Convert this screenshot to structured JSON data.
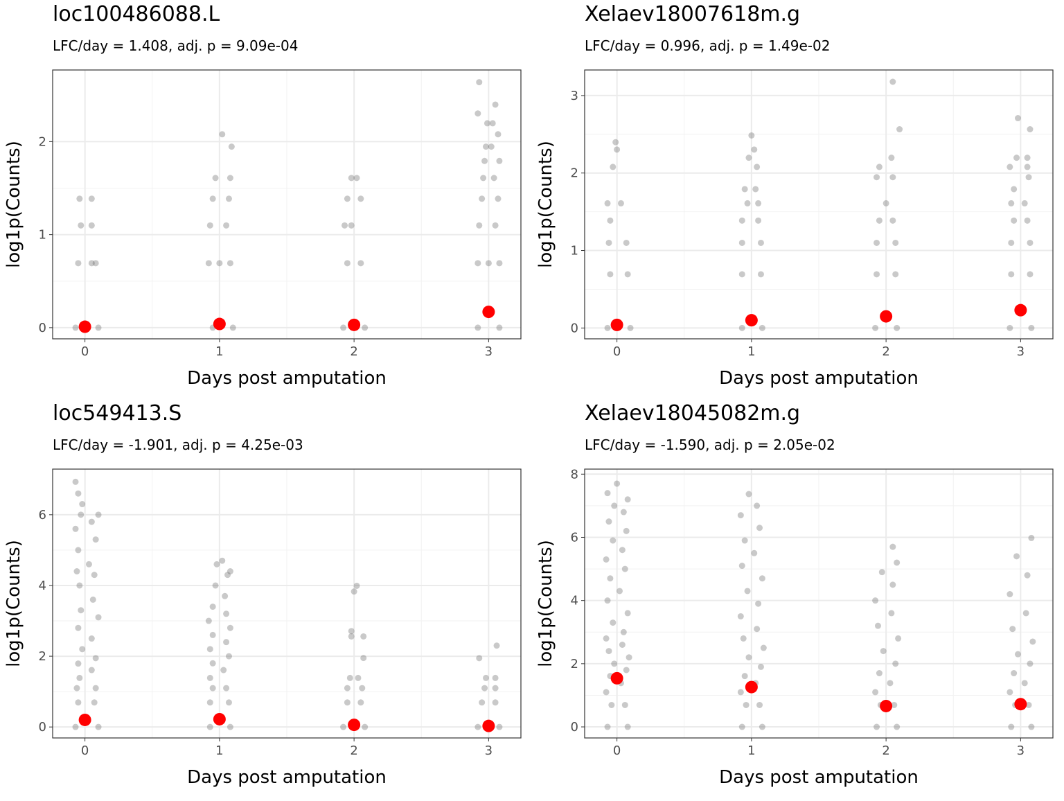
{
  "chart_data": [
    {
      "type": "scatter",
      "title": "loc100486088.L",
      "subtitle": "LFC/day = 1.408, adj. p = 9.09e-04",
      "x_label": "Days post amputation",
      "y_label": "log1p(Counts)",
      "xlim": [
        -0.24,
        3.24
      ],
      "ylim": [
        -0.12,
        2.77
      ],
      "xticks": [
        0,
        1,
        2,
        3
      ],
      "yticks": [
        0,
        1,
        2
      ],
      "grid": true,
      "series": [
        {
          "color": "#636363",
          "opacity": 0.35,
          "x": [
            -0.07,
            0.1,
            0,
            -0.05,
            0.05,
            0.08,
            -0.03,
            0.05,
            -0.04,
            0.05,
            0.95,
            1.1,
            0.92,
            1.0,
            1.08,
            0.93,
            1.05,
            0.95,
            1.07,
            0.97,
            1.08,
            1.02,
            1.09,
            1.92,
            2.08,
            1.95,
            2.05,
            1.93,
            1.98,
            1.95,
            2.05,
            1.98,
            2.02,
            2.92,
            3.08,
            2.92,
            3.0,
            3.08,
            2.93,
            3.05,
            2.95,
            3.07,
            2.96,
            3.04,
            2.97,
            3.08,
            2.98,
            3.02,
            2.99,
            3.03,
            3.05,
            2.92,
            2.93,
            3.07
          ],
          "values": [
            0,
            0,
            0,
            0.693,
            0.693,
            0.693,
            1.099,
            1.099,
            1.386,
            1.386,
            0,
            0,
            0.693,
            0.693,
            0.693,
            1.099,
            1.099,
            1.386,
            1.386,
            1.609,
            1.609,
            2.079,
            1.946,
            0,
            0,
            0.693,
            0.693,
            1.099,
            1.099,
            1.386,
            1.386,
            1.609,
            1.609,
            0,
            0,
            0.693,
            0.693,
            0.693,
            1.099,
            1.099,
            1.386,
            1.386,
            1.609,
            1.609,
            1.792,
            1.792,
            1.946,
            1.946,
            2.197,
            2.197,
            2.398,
            2.303,
            2.639,
            2.079
          ]
        },
        {
          "color": "#ff0000",
          "opacity": 1,
          "x": [
            0,
            1,
            2,
            3
          ],
          "values": [
            0.01,
            0.04,
            0.03,
            0.17
          ]
        }
      ]
    },
    {
      "type": "scatter",
      "title": "Xelaev18007618m.g",
      "subtitle": "LFC/day = 0.996, adj. p = 1.49e-02",
      "x_label": "Days post amputation",
      "y_label": "log1p(Counts)",
      "xlim": [
        -0.24,
        3.24
      ],
      "ylim": [
        -0.14,
        3.33
      ],
      "xticks": [
        0,
        1,
        2,
        3
      ],
      "yticks": [
        0,
        1,
        2,
        3
      ],
      "grid": true,
      "series": [
        {
          "color": "#636363",
          "opacity": 0.35,
          "x": [
            -0.07,
            0.1,
            -0.05,
            0.08,
            -0.06,
            0.07,
            -0.05,
            -0.07,
            0.03,
            -0.03,
            0.0,
            -0.01,
            0.93,
            1.08,
            0.93,
            1.07,
            0.93,
            1.07,
            0.93,
            1.05,
            0.97,
            1.05,
            0.95,
            1.03,
            1.04,
            0.98,
            1.02,
            1.0,
            1.92,
            2.08,
            1.93,
            2.07,
            1.93,
            2.07,
            1.95,
            2.05,
            2.0,
            1.93,
            2.05,
            1.95,
            2.04,
            2.1,
            2.05,
            2.92,
            3.08,
            2.93,
            3.07,
            2.93,
            3.07,
            2.95,
            3.05,
            2.93,
            3.03,
            2.95,
            3.06,
            2.92,
            3.05,
            2.97,
            3.05,
            3.07,
            2.98
          ],
          "values": [
            0,
            0,
            0.693,
            0.693,
            1.099,
            1.099,
            1.386,
            1.609,
            1.609,
            2.079,
            2.303,
            2.398,
            0,
            0,
            0.693,
            0.693,
            1.099,
            1.099,
            1.386,
            1.386,
            1.609,
            1.609,
            1.792,
            1.792,
            2.079,
            2.197,
            2.303,
            2.485,
            0,
            0,
            0.693,
            0.693,
            1.099,
            1.099,
            1.386,
            1.386,
            1.609,
            1.946,
            1.946,
            2.079,
            2.197,
            2.565,
            3.178,
            0,
            0,
            0.693,
            0.693,
            1.099,
            1.099,
            1.386,
            1.386,
            1.609,
            1.609,
            1.792,
            1.946,
            2.079,
            2.079,
            2.197,
            2.197,
            2.565,
            2.708
          ]
        },
        {
          "color": "#ff0000",
          "opacity": 1,
          "x": [
            0,
            1,
            2,
            3
          ],
          "values": [
            0.04,
            0.1,
            0.15,
            0.23
          ]
        }
      ]
    },
    {
      "type": "scatter",
      "title": "loc549413.S",
      "subtitle": "LFC/day = -1.901, adj. p = 4.25e-03",
      "x_label": "Days post amputation",
      "y_label": "log1p(Counts)",
      "xlim": [
        -0.24,
        3.24
      ],
      "ylim": [
        -0.31,
        7.29
      ],
      "xticks": [
        0,
        1,
        2,
        3
      ],
      "yticks": [
        0,
        2,
        4,
        6
      ],
      "grid": true,
      "series": [
        {
          "color": "#636363",
          "opacity": 0.35,
          "x": [
            -0.07,
            0.1,
            -0.05,
            0.07,
            -0.06,
            0.08,
            -0.04,
            0.05,
            -0.05,
            0.08,
            -0.02,
            0.05,
            -0.05,
            0.1,
            -0.03,
            0.06,
            -0.04,
            0.07,
            -0.06,
            0.03,
            -0.05,
            0.08,
            -0.07,
            0.05,
            -0.03,
            0.1,
            -0.02,
            -0.05,
            -0.07,
            0.93,
            1.08,
            0.93,
            1.07,
            0.95,
            1.05,
            0.93,
            1.03,
            0.95,
            1.07,
            0.93,
            1.05,
            0.95,
            1.08,
            0.92,
            1.05,
            0.95,
            1.04,
            0.97,
            1.06,
            1.08,
            0.98,
            1.02,
            1.92,
            2.08,
            1.95,
            2.05,
            1.95,
            2.06,
            1.97,
            2.03,
            2.07,
            1.98,
            1.98,
            2.07,
            2.0,
            2.02,
            2.92,
            3.08,
            2.95,
            3.05,
            2.97,
            3.05,
            2.98,
            3.05,
            2.93,
            3.06
          ],
          "values": [
            0,
            0,
            0.693,
            0.693,
            1.099,
            1.099,
            1.386,
            1.609,
            1.792,
            1.946,
            2.2,
            2.5,
            2.8,
            3.1,
            3.3,
            3.6,
            4.0,
            4.3,
            4.4,
            4.6,
            5.0,
            5.3,
            5.6,
            5.8,
            6.0,
            6.0,
            6.3,
            6.6,
            6.93,
            0,
            0,
            0.693,
            0.693,
            1.099,
            1.099,
            1.386,
            1.609,
            1.8,
            2.0,
            2.2,
            2.4,
            2.6,
            2.8,
            3.0,
            3.2,
            3.4,
            3.7,
            4.0,
            4.3,
            4.4,
            4.6,
            4.7,
            0,
            0,
            0.693,
            0.693,
            1.099,
            1.099,
            1.386,
            1.386,
            1.95,
            2.56,
            2.71,
            2.56,
            3.83,
            3.99,
            0,
            0,
            0.693,
            0.693,
            1.099,
            1.099,
            1.386,
            1.386,
            1.946,
            2.3
          ]
        },
        {
          "color": "#ff0000",
          "opacity": 1,
          "x": [
            0,
            1,
            2,
            3
          ],
          "values": [
            0.2,
            0.22,
            0.06,
            0.03
          ]
        }
      ]
    },
    {
      "type": "scatter",
      "title": "Xelaev18045082m.g",
      "subtitle": "LFC/day = -1.590, adj. p = 2.05e-02",
      "x_label": "Days post amputation",
      "y_label": "log1p(Counts)",
      "xlim": [
        -0.24,
        3.24
      ],
      "ylim": [
        -0.35,
        8.16
      ],
      "xticks": [
        0,
        1,
        2,
        3
      ],
      "yticks": [
        0,
        2,
        4,
        6,
        8
      ],
      "grid": true,
      "series": [
        {
          "color": "#636363",
          "opacity": 0.35,
          "x": [
            -0.07,
            0.08,
            -0.04,
            0.06,
            -0.08,
            0.03,
            -0.05,
            0.07,
            -0.02,
            0.09,
            -0.06,
            0.04,
            -0.08,
            0.05,
            -0.03,
            0.08,
            -0.07,
            0.02,
            -0.05,
            0.06,
            -0.08,
            0.04,
            -0.03,
            0.07,
            -0.06,
            0.05,
            -0.02,
            0.08,
            -0.07,
            0.0,
            0.93,
            1.08,
            0.96,
            1.06,
            0.92,
            1.03,
            0.95,
            1.07,
            0.98,
            1.09,
            0.94,
            1.04,
            0.92,
            1.05,
            0.97,
            1.08,
            0.93,
            1.02,
            0.95,
            1.06,
            0.92,
            1.04,
            0.98,
            1.93,
            2.08,
            1.96,
            2.06,
            1.92,
            2.03,
            1.95,
            2.07,
            1.98,
            2.09,
            1.94,
            2.04,
            1.92,
            2.05,
            1.97,
            2.08,
            2.05,
            2.93,
            3.08,
            2.96,
            3.06,
            2.92,
            3.03,
            2.95,
            3.07,
            2.98,
            3.09,
            2.94,
            3.04,
            2.92,
            3.05,
            2.97,
            3.08
          ],
          "values": [
            0,
            0,
            0.693,
            0.693,
            1.099,
            1.386,
            1.609,
            1.8,
            2.0,
            2.2,
            2.4,
            2.6,
            2.8,
            3.0,
            3.3,
            3.6,
            4.0,
            4.3,
            4.7,
            5.0,
            5.3,
            5.6,
            5.9,
            6.2,
            6.5,
            6.8,
            7.0,
            7.2,
            7.4,
            7.7,
            0,
            0,
            0.693,
            0.693,
            1.099,
            1.386,
            1.609,
            1.9,
            2.2,
            2.5,
            2.8,
            3.1,
            3.5,
            3.9,
            4.3,
            4.7,
            5.1,
            5.5,
            5.9,
            6.3,
            6.7,
            7.0,
            7.37,
            0,
            0,
            0.693,
            0.693,
            1.099,
            1.386,
            1.7,
            2.0,
            2.4,
            2.8,
            3.2,
            3.6,
            4.0,
            4.5,
            4.9,
            5.2,
            5.7,
            0,
            0,
            0.693,
            0.693,
            1.099,
            1.386,
            1.7,
            2.0,
            2.3,
            2.7,
            3.1,
            3.6,
            4.2,
            4.8,
            5.4,
            5.98
          ]
        },
        {
          "color": "#ff0000",
          "opacity": 1,
          "x": [
            0,
            1,
            2,
            3
          ],
          "values": [
            1.54,
            1.26,
            0.66,
            0.72
          ]
        }
      ]
    }
  ]
}
